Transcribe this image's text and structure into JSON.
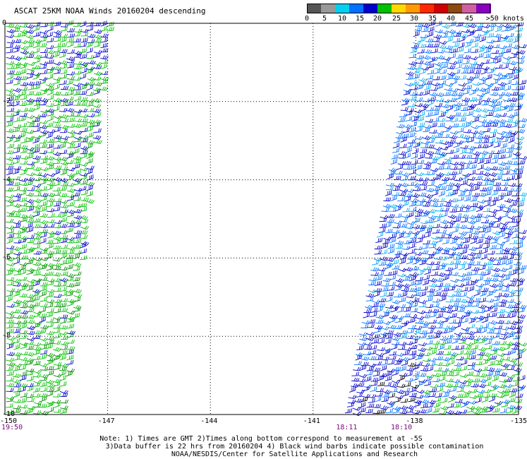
{
  "title": "ASCAT 25KM NOAA Winds 20160204 descending",
  "colorbar": {
    "labels": [
      "0",
      "5",
      "10",
      "15",
      "20",
      "25",
      "30",
      "35",
      "40",
      "45",
      ">50 knots"
    ],
    "colors": [
      "#555555",
      "#999999",
      "#00d0f0",
      "#0070ff",
      "#0000cc",
      "#00c000",
      "#ffd800",
      "#ff9a00",
      "#ff2a00",
      "#d00000",
      "#8a4a10",
      "#d060a0",
      "#8a00c0"
    ]
  },
  "map": {
    "lon_ticks": [
      "-150",
      "-147",
      "-144",
      "-141",
      "-138",
      "-135"
    ],
    "lat_ticks": [
      "0",
      "-2",
      "-4",
      "-6",
      "-8",
      "-10"
    ],
    "times": [
      {
        "label": "19:50",
        "lon": -150
      },
      {
        "label": "18:11",
        "lon": -140.0
      },
      {
        "label": "18:10",
        "lon": -138.4
      }
    ]
  },
  "notes": {
    "line1": "Note: 1) Times are GMT 2)Times along bottom correspond to measurement at -5S",
    "line2": "3)Data buffer is 22 hrs from 20160204 4) Black wind barbs indicate possible contamination",
    "line3": "NOAA/NESDIS/Center for Satellite Applications and Research"
  }
}
